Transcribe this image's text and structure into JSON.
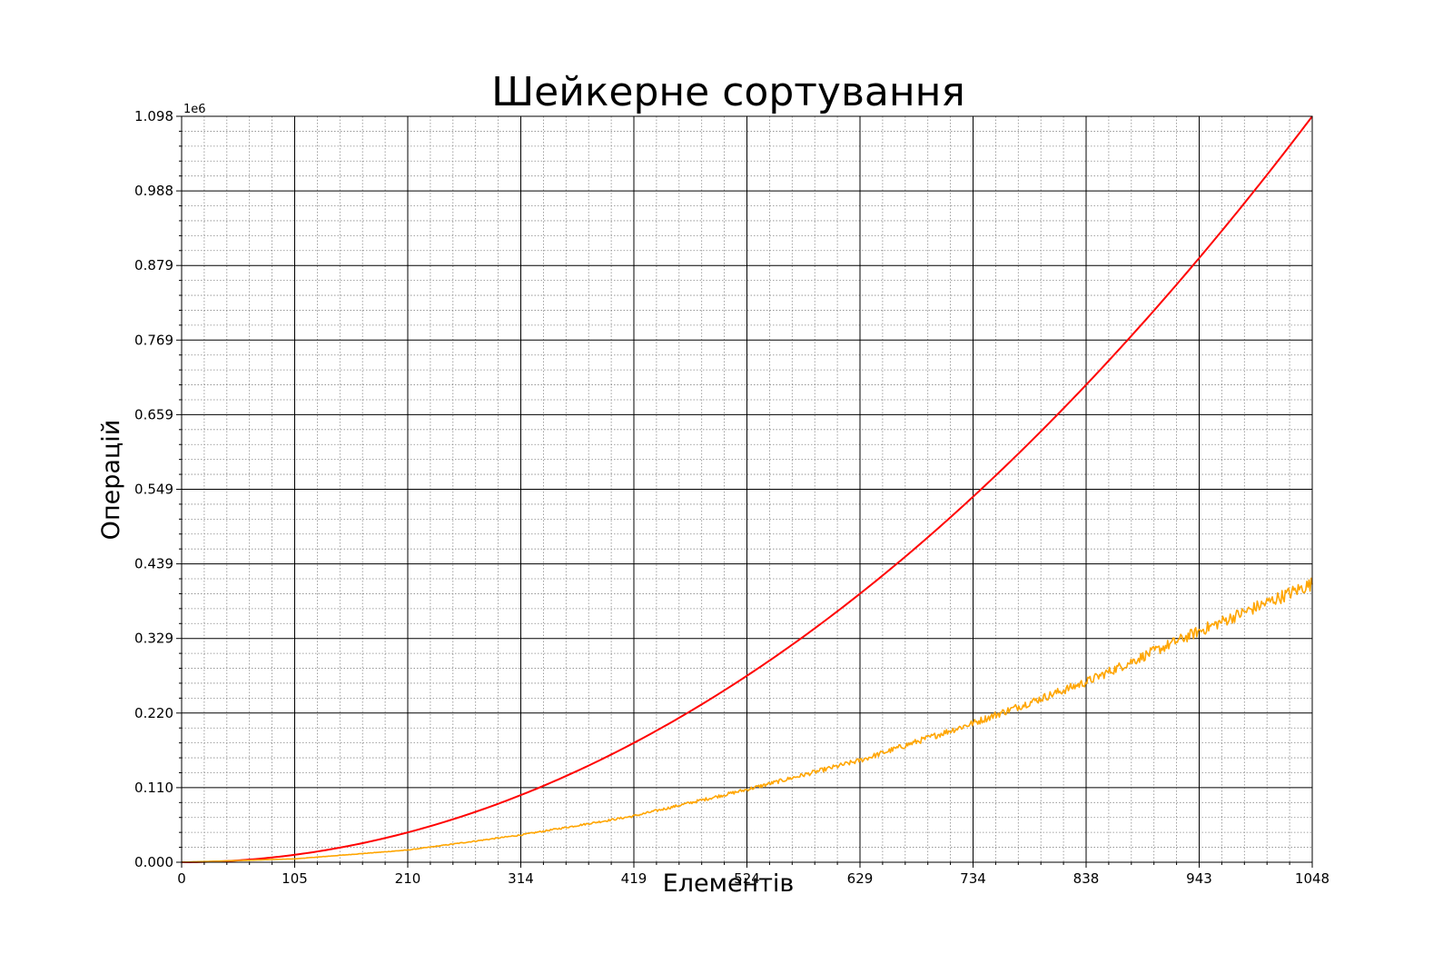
{
  "chart_data": {
    "type": "line",
    "title": "Шейкерне сортування",
    "xlabel": "Елементів",
    "ylabel": "Операцій",
    "y_offset_label": "1e6",
    "xlim": [
      0,
      1048
    ],
    "ylim": [
      0,
      1.098
    ],
    "x_ticks": [
      "0",
      "105",
      "210",
      "314",
      "419",
      "524",
      "629",
      "734",
      "838",
      "943",
      "1048"
    ],
    "y_ticks": [
      "0.000",
      "0.110",
      "0.220",
      "0.329",
      "0.439",
      "0.549",
      "0.659",
      "0.769",
      "0.879",
      "0.988",
      "1.098"
    ],
    "grid": true,
    "series": [
      {
        "color": "#ff0000",
        "style": "smooth",
        "x": [
          0,
          105,
          210,
          314,
          419,
          524,
          629,
          734,
          838,
          943,
          1048
        ],
        "y": [
          0.0,
          0.011,
          0.044,
          0.099,
          0.176,
          0.275,
          0.396,
          0.539,
          0.703,
          0.889,
          1.098
        ]
      },
      {
        "color": "#ffa500",
        "style": "noisy",
        "x": [
          0,
          105,
          210,
          314,
          419,
          524,
          629,
          734,
          838,
          943,
          1048
        ],
        "y": [
          0.0,
          0.005,
          0.018,
          0.04,
          0.068,
          0.107,
          0.15,
          0.205,
          0.265,
          0.34,
          0.41
        ]
      }
    ]
  }
}
